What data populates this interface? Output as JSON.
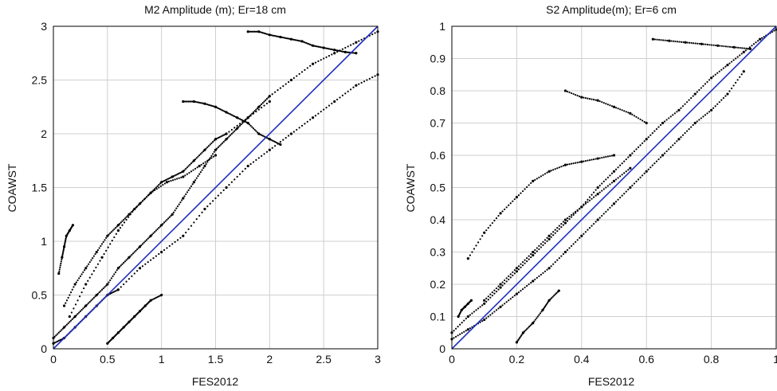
{
  "chart_data": [
    {
      "type": "scatter",
      "title": "M2 Amplitude (m); Er=18 cm",
      "xlabel": "FES2012",
      "ylabel": "COAWST",
      "xlim": [
        0,
        3
      ],
      "ylim": [
        0,
        3
      ],
      "xticks": [
        0,
        0.5,
        1,
        1.5,
        2,
        2.5,
        3
      ],
      "xtick_labels": [
        "0",
        "0.5",
        "1",
        "1.5",
        "2",
        "2.5",
        "3"
      ],
      "yticks": [
        0,
        0.5,
        1,
        1.5,
        2,
        2.5,
        3
      ],
      "ytick_labels": [
        "0",
        "0.5",
        "1",
        "1.5",
        "2",
        "2.5",
        "3"
      ],
      "grid": true,
      "reference_line": {
        "x": [
          0,
          3
        ],
        "y": [
          0,
          3
        ],
        "color": "#1f2fbf"
      },
      "point_color": "#000000",
      "series": [
        {
          "x": [
            0.0,
            0.1,
            0.2,
            0.3,
            0.4,
            0.5,
            0.6,
            0.7,
            0.8,
            0.9,
            1.0,
            1.1,
            1.2,
            1.3,
            1.4,
            1.5,
            1.6,
            1.7,
            1.8,
            1.9,
            2.0,
            2.2,
            2.4,
            2.6,
            2.8,
            3.0
          ],
          "y": [
            0.1,
            0.2,
            0.3,
            0.4,
            0.5,
            0.6,
            0.75,
            0.85,
            0.95,
            1.05,
            1.15,
            1.25,
            1.4,
            1.55,
            1.7,
            1.85,
            1.95,
            2.05,
            2.15,
            2.25,
            2.35,
            2.5,
            2.65,
            2.75,
            2.85,
            2.95
          ]
        },
        {
          "x": [
            0.0,
            0.1,
            0.2,
            0.3,
            0.4,
            0.5,
            0.6,
            0.8,
            1.0,
            1.2,
            1.4,
            1.6,
            1.8,
            2.0,
            2.2,
            2.4,
            2.6,
            2.8,
            3.0
          ],
          "y": [
            0.05,
            0.1,
            0.2,
            0.3,
            0.4,
            0.5,
            0.55,
            0.75,
            0.9,
            1.05,
            1.3,
            1.5,
            1.7,
            1.85,
            2.0,
            2.15,
            2.3,
            2.45,
            2.55
          ]
        },
        {
          "x": [
            0.1,
            0.2,
            0.3,
            0.4,
            0.5,
            0.6,
            0.7,
            0.8,
            0.9,
            1.0,
            1.1,
            1.2,
            1.3,
            1.4,
            1.5,
            1.6,
            1.8,
            2.0
          ],
          "y": [
            0.4,
            0.6,
            0.75,
            0.9,
            1.05,
            1.15,
            1.25,
            1.35,
            1.45,
            1.55,
            1.6,
            1.65,
            1.75,
            1.85,
            1.95,
            2.0,
            2.15,
            2.3
          ]
        },
        {
          "x": [
            0.15,
            0.3,
            0.45,
            0.6,
            0.75,
            0.9,
            1.05,
            1.2,
            1.35,
            1.5
          ],
          "y": [
            0.3,
            0.6,
            0.85,
            1.1,
            1.3,
            1.45,
            1.55,
            1.6,
            1.7,
            1.8
          ]
        },
        {
          "x": [
            1.2,
            1.3,
            1.4,
            1.5,
            1.6,
            1.7,
            1.8,
            1.9,
            2.0,
            2.1
          ],
          "y": [
            2.3,
            2.3,
            2.28,
            2.25,
            2.2,
            2.15,
            2.1,
            2.0,
            1.95,
            1.9
          ]
        },
        {
          "x": [
            1.8,
            1.9,
            2.0,
            2.1,
            2.2,
            2.3,
            2.4,
            2.5,
            2.6,
            2.7,
            2.8
          ],
          "y": [
            2.95,
            2.95,
            2.92,
            2.9,
            2.88,
            2.86,
            2.82,
            2.8,
            2.78,
            2.76,
            2.75
          ]
        },
        {
          "x": [
            0.5,
            0.55,
            0.6,
            0.65,
            0.7,
            0.75,
            0.8,
            0.85,
            0.9,
            1.0
          ],
          "y": [
            0.05,
            0.1,
            0.15,
            0.2,
            0.25,
            0.3,
            0.35,
            0.4,
            0.45,
            0.5
          ]
        },
        {
          "x": [
            0.05,
            0.08,
            0.1,
            0.12,
            0.15,
            0.18
          ],
          "y": [
            0.7,
            0.85,
            0.95,
            1.05,
            1.1,
            1.15
          ]
        }
      ]
    },
    {
      "type": "scatter",
      "title": "S2 Amplitude(m); Er=6 cm",
      "xlabel": "FES2012",
      "ylabel": "COAWST",
      "xlim": [
        0,
        1
      ],
      "ylim": [
        0,
        1
      ],
      "xticks": [
        0,
        0.2,
        0.4,
        0.6,
        0.8,
        1
      ],
      "xtick_labels": [
        "0",
        "0.2",
        "0.4",
        "0.6",
        "0.8",
        "1"
      ],
      "yticks": [
        0,
        0.1,
        0.2,
        0.3,
        0.4,
        0.5,
        0.6,
        0.7,
        0.8,
        0.9,
        1
      ],
      "ytick_labels": [
        "0",
        "0.1",
        "0.2",
        "0.3",
        "0.4",
        "0.5",
        "0.6",
        "0.7",
        "0.8",
        "0.9",
        "1"
      ],
      "grid": true,
      "reference_line": {
        "x": [
          0,
          1
        ],
        "y": [
          0,
          1
        ],
        "color": "#1f2fbf"
      },
      "point_color": "#000000",
      "series": [
        {
          "x": [
            0.0,
            0.05,
            0.1,
            0.15,
            0.2,
            0.25,
            0.3,
            0.35,
            0.4,
            0.45,
            0.5,
            0.55,
            0.6,
            0.65,
            0.7,
            0.75,
            0.8,
            0.85,
            0.9,
            0.95,
            1.0
          ],
          "y": [
            0.05,
            0.1,
            0.14,
            0.19,
            0.24,
            0.29,
            0.34,
            0.39,
            0.44,
            0.5,
            0.55,
            0.6,
            0.65,
            0.7,
            0.74,
            0.79,
            0.84,
            0.88,
            0.92,
            0.96,
            0.99
          ]
        },
        {
          "x": [
            0.0,
            0.05,
            0.1,
            0.15,
            0.2,
            0.25,
            0.3,
            0.35,
            0.4,
            0.45,
            0.5,
            0.55,
            0.6,
            0.65,
            0.7,
            0.75,
            0.8,
            0.85,
            0.9
          ],
          "y": [
            0.03,
            0.06,
            0.09,
            0.13,
            0.17,
            0.21,
            0.25,
            0.3,
            0.35,
            0.4,
            0.45,
            0.5,
            0.55,
            0.6,
            0.65,
            0.7,
            0.74,
            0.79,
            0.86
          ]
        },
        {
          "x": [
            0.05,
            0.1,
            0.15,
            0.2,
            0.25,
            0.3,
            0.35,
            0.4,
            0.45,
            0.5
          ],
          "y": [
            0.28,
            0.36,
            0.42,
            0.47,
            0.52,
            0.55,
            0.57,
            0.58,
            0.59,
            0.6
          ]
        },
        {
          "x": [
            0.1,
            0.15,
            0.2,
            0.25,
            0.3,
            0.35,
            0.4,
            0.45,
            0.5,
            0.55
          ],
          "y": [
            0.15,
            0.2,
            0.25,
            0.3,
            0.35,
            0.4,
            0.44,
            0.48,
            0.52,
            0.56
          ]
        },
        {
          "x": [
            0.35,
            0.4,
            0.45,
            0.5,
            0.55,
            0.6
          ],
          "y": [
            0.8,
            0.78,
            0.77,
            0.75,
            0.73,
            0.7
          ]
        },
        {
          "x": [
            0.62,
            0.67,
            0.72,
            0.77,
            0.82,
            0.87,
            0.92
          ],
          "y": [
            0.96,
            0.955,
            0.95,
            0.945,
            0.94,
            0.935,
            0.93
          ]
        },
        {
          "x": [
            0.2,
            0.22,
            0.25,
            0.28,
            0.3,
            0.33
          ],
          "y": [
            0.02,
            0.05,
            0.08,
            0.12,
            0.15,
            0.18
          ]
        },
        {
          "x": [
            0.02,
            0.03,
            0.04,
            0.05,
            0.06
          ],
          "y": [
            0.1,
            0.12,
            0.13,
            0.14,
            0.15
          ]
        }
      ]
    }
  ]
}
